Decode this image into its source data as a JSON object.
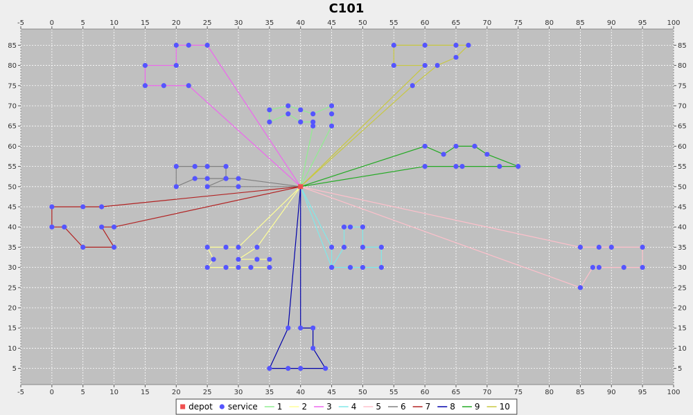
{
  "chart_data": {
    "type": "scatter",
    "title": "C101",
    "xlabel": "",
    "ylabel": "",
    "xlim": [
      -5,
      100
    ],
    "ylim": [
      1,
      89
    ],
    "xticks": [
      -5,
      0,
      5,
      10,
      15,
      20,
      25,
      30,
      35,
      40,
      45,
      50,
      55,
      60,
      65,
      70,
      75,
      80,
      85,
      90,
      95,
      100
    ],
    "yticks": [
      5,
      10,
      15,
      20,
      25,
      30,
      35,
      40,
      45,
      50,
      55,
      60,
      65,
      70,
      75,
      80,
      85
    ],
    "grid": true,
    "background": "#c0c0c0",
    "legend_position": "bottom",
    "depot": {
      "label": "depot",
      "color": "#f05050",
      "x": 40,
      "y": 50
    },
    "service_label": "service",
    "service_color": "#5555ff",
    "routes": [
      {
        "name": "1",
        "color": "#90ee90",
        "points": [
          [
            40,
            50
          ],
          [
            42,
            65
          ],
          [
            42,
            66
          ],
          [
            40,
            66
          ],
          [
            38,
            68
          ],
          [
            35,
            66
          ],
          [
            35,
            69
          ],
          [
            38,
            70
          ],
          [
            40,
            69
          ],
          [
            42,
            68
          ],
          [
            45,
            70
          ],
          [
            45,
            68
          ],
          [
            45,
            65
          ],
          [
            40,
            50
          ]
        ]
      },
      {
        "name": "2",
        "color": "#ffff99",
        "points": [
          [
            40,
            50
          ],
          [
            30,
            35
          ],
          [
            28,
            35
          ],
          [
            25,
            35
          ],
          [
            26,
            32
          ],
          [
            25,
            30
          ],
          [
            28,
            30
          ],
          [
            30,
            30
          ],
          [
            32,
            30
          ],
          [
            35,
            30
          ],
          [
            35,
            32
          ],
          [
            33,
            32
          ],
          [
            30,
            32
          ],
          [
            33,
            35
          ],
          [
            40,
            50
          ]
        ]
      },
      {
        "name": "3",
        "color": "#ee66ee",
        "points": [
          [
            40,
            50
          ],
          [
            22,
            75
          ],
          [
            18,
            75
          ],
          [
            15,
            75
          ],
          [
            15,
            80
          ],
          [
            20,
            80
          ],
          [
            20,
            85
          ],
          [
            22,
            85
          ],
          [
            25,
            85
          ],
          [
            40,
            50
          ]
        ]
      },
      {
        "name": "4",
        "color": "#80e8e8",
        "points": [
          [
            40,
            50
          ],
          [
            45,
            35
          ],
          [
            45,
            30
          ],
          [
            48,
            30
          ],
          [
            50,
            30
          ],
          [
            53,
            30
          ],
          [
            53,
            35
          ],
          [
            50,
            35
          ],
          [
            50,
            40
          ],
          [
            48,
            40
          ],
          [
            47,
            40
          ],
          [
            47,
            35
          ],
          [
            45,
            30
          ],
          [
            40,
            50
          ]
        ]
      },
      {
        "name": "5",
        "color": "#ffc0cb",
        "points": [
          [
            40,
            50
          ],
          [
            85,
            35
          ],
          [
            88,
            35
          ],
          [
            90,
            35
          ],
          [
            95,
            35
          ],
          [
            95,
            30
          ],
          [
            92,
            30
          ],
          [
            88,
            30
          ],
          [
            87,
            30
          ],
          [
            85,
            25
          ],
          [
            40,
            50
          ]
        ]
      },
      {
        "name": "6",
        "color": "#808080",
        "points": [
          [
            40,
            50
          ],
          [
            30,
            52
          ],
          [
            28,
            52
          ],
          [
            25,
            52
          ],
          [
            23,
            52
          ],
          [
            20,
            50
          ],
          [
            20,
            55
          ],
          [
            23,
            55
          ],
          [
            25,
            55
          ],
          [
            28,
            55
          ],
          [
            28,
            52
          ],
          [
            25,
            50
          ],
          [
            30,
            50
          ],
          [
            40,
            50
          ]
        ]
      },
      {
        "name": "7",
        "color": "#b22222",
        "points": [
          [
            40,
            50
          ],
          [
            8,
            45
          ],
          [
            5,
            45
          ],
          [
            0,
            45
          ],
          [
            0,
            40
          ],
          [
            2,
            40
          ],
          [
            5,
            35
          ],
          [
            10,
            35
          ],
          [
            8,
            40
          ],
          [
            10,
            40
          ],
          [
            40,
            50
          ]
        ]
      },
      {
        "name": "8",
        "color": "#0000aa",
        "points": [
          [
            40,
            50
          ],
          [
            40,
            15
          ],
          [
            42,
            15
          ],
          [
            42,
            10
          ],
          [
            44,
            5
          ],
          [
            40,
            5
          ],
          [
            38,
            5
          ],
          [
            35,
            5
          ],
          [
            38,
            15
          ],
          [
            40,
            50
          ]
        ]
      },
      {
        "name": "9",
        "color": "#22aa22",
        "points": [
          [
            40,
            50
          ],
          [
            60,
            55
          ],
          [
            65,
            55
          ],
          [
            66,
            55
          ],
          [
            72,
            55
          ],
          [
            75,
            55
          ],
          [
            70,
            58
          ],
          [
            68,
            60
          ],
          [
            65,
            60
          ],
          [
            63,
            58
          ],
          [
            60,
            60
          ],
          [
            40,
            50
          ]
        ]
      },
      {
        "name": "10",
        "color": "#c8c840",
        "points": [
          [
            40,
            50
          ],
          [
            58,
            75
          ],
          [
            62,
            80
          ],
          [
            65,
            82
          ],
          [
            67,
            85
          ],
          [
            65,
            85
          ],
          [
            60,
            85
          ],
          [
            55,
            85
          ],
          [
            55,
            80
          ],
          [
            60,
            80
          ],
          [
            40,
            50
          ]
        ]
      }
    ]
  }
}
